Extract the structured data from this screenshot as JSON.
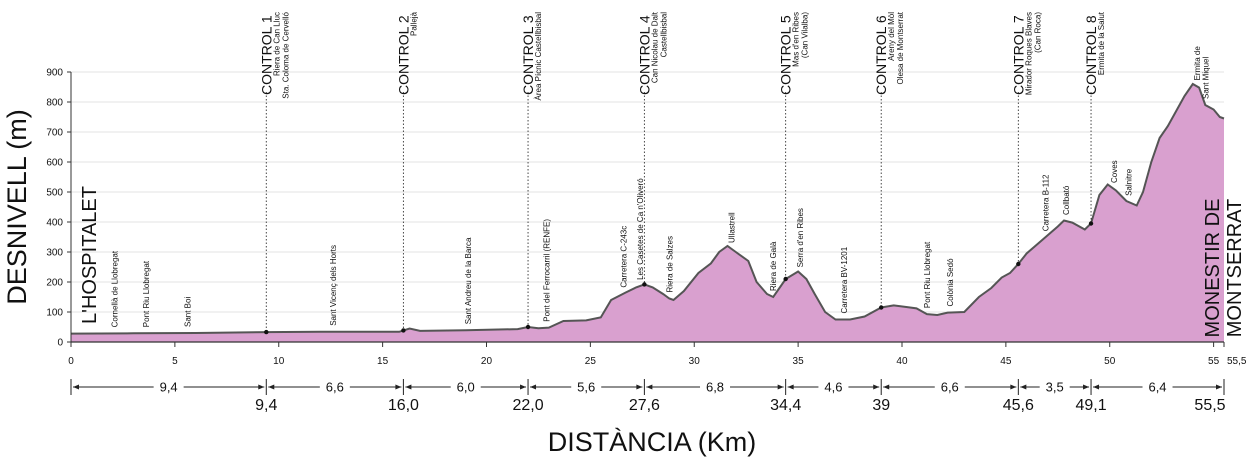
{
  "chart_data": {
    "type": "area",
    "xlabel": "DISTÀNCIA (Km)",
    "ylabel": "DESNIVELL (m)",
    "xlim": [
      0,
      55.5
    ],
    "ylim": [
      0,
      900
    ],
    "xticks": [
      "0",
      "5",
      "10",
      "15",
      "20",
      "25",
      "30",
      "35",
      "40",
      "45",
      "50",
      "55",
      "55,5"
    ],
    "yticks": [
      "0",
      "100",
      "200",
      "300",
      "400",
      "500",
      "600",
      "700",
      "800",
      "900"
    ],
    "grid": "horizontal",
    "colors": {
      "fill": "#d9a0cf",
      "line": "#555555",
      "axis": "#333333"
    },
    "start_label": "L'HOSPITALET",
    "end_label_1": "MONESTIR DE",
    "end_label_2": "MONTSERRAT",
    "profile": [
      [
        0,
        28
      ],
      [
        3,
        29
      ],
      [
        6,
        30
      ],
      [
        9.4,
        33
      ],
      [
        12,
        34
      ],
      [
        15.8,
        34
      ],
      [
        16.3,
        45
      ],
      [
        16.8,
        37
      ],
      [
        19,
        39
      ],
      [
        21.5,
        43
      ],
      [
        22,
        50
      ],
      [
        22.5,
        46
      ],
      [
        23,
        48
      ],
      [
        23.7,
        70
      ],
      [
        24.8,
        72
      ],
      [
        25.5,
        82
      ],
      [
        26,
        140
      ],
      [
        26.7,
        165
      ],
      [
        27.2,
        182
      ],
      [
        27.6,
        192
      ],
      [
        28,
        182
      ],
      [
        28.5,
        160
      ],
      [
        28.8,
        145
      ],
      [
        29,
        140
      ],
      [
        29.5,
        170
      ],
      [
        30.2,
        230
      ],
      [
        30.8,
        262
      ],
      [
        31.2,
        300
      ],
      [
        31.6,
        320
      ],
      [
        32,
        300
      ],
      [
        32.6,
        270
      ],
      [
        33,
        200
      ],
      [
        33.5,
        160
      ],
      [
        33.8,
        150
      ],
      [
        34.4,
        210
      ],
      [
        35,
        235
      ],
      [
        35.4,
        210
      ],
      [
        35.8,
        160
      ],
      [
        36.3,
        100
      ],
      [
        36.8,
        75
      ],
      [
        37.5,
        75
      ],
      [
        38.2,
        85
      ],
      [
        39,
        115
      ],
      [
        39.6,
        122
      ],
      [
        40.3,
        116
      ],
      [
        40.7,
        112
      ],
      [
        41.2,
        93
      ],
      [
        41.7,
        90
      ],
      [
        42.2,
        98
      ],
      [
        43,
        100
      ],
      [
        43.7,
        150
      ],
      [
        44.3,
        180
      ],
      [
        44.8,
        215
      ],
      [
        45.2,
        230
      ],
      [
        45.6,
        260
      ],
      [
        46,
        295
      ],
      [
        46.5,
        325
      ],
      [
        47,
        355
      ],
      [
        47.5,
        385
      ],
      [
        47.8,
        405
      ],
      [
        48.2,
        398
      ],
      [
        48.8,
        375
      ],
      [
        49.1,
        395
      ],
      [
        49.5,
        490
      ],
      [
        49.9,
        525
      ],
      [
        50.3,
        505
      ],
      [
        50.8,
        470
      ],
      [
        51.3,
        455
      ],
      [
        51.6,
        500
      ],
      [
        52,
        600
      ],
      [
        52.4,
        680
      ],
      [
        52.8,
        720
      ],
      [
        53.2,
        770
      ],
      [
        53.6,
        820
      ],
      [
        54,
        860
      ],
      [
        54.3,
        848
      ],
      [
        54.6,
        790
      ],
      [
        55,
        775
      ],
      [
        55.3,
        750
      ],
      [
        55.5,
        745
      ]
    ],
    "controls": [
      {
        "name": "CONTROL 1",
        "x": 9.4,
        "sub": [
          "Riera de Can Lluc",
          "Sta. Coloma de Cervelló"
        ]
      },
      {
        "name": "CONTROL 2",
        "x": 16.0,
        "sub": [
          "Pallejà"
        ]
      },
      {
        "name": "CONTROL 3",
        "x": 22.0,
        "sub": [
          "Àrea Pícnic Castellbisbal"
        ]
      },
      {
        "name": "CONTROL 4",
        "x": 27.6,
        "sub": [
          "Can Nicolau de Dalt",
          "Castellbisbal"
        ]
      },
      {
        "name": "CONTROL 5",
        "x": 34.4,
        "sub": [
          "Mas d'en Ribes",
          "(Can Vilalba)"
        ]
      },
      {
        "name": "CONTROL 6",
        "x": 39.0,
        "sub": [
          "Areny del Mòl",
          "Olesa de Montserrat"
        ]
      },
      {
        "name": "CONTROL 7",
        "x": 45.6,
        "sub": [
          "Mirador Roques Blaves",
          "(Can Roca)"
        ]
      },
      {
        "name": "CONTROL 8",
        "x": 49.1,
        "sub": [
          "Ermita de la Salut"
        ]
      }
    ],
    "places": [
      {
        "text": "Cornellà de Llobregat",
        "x": 2.1
      },
      {
        "text": "Pont Riu Llobregat",
        "x": 3.6
      },
      {
        "text": "Sant Boi",
        "x": 5.6
      },
      {
        "text": "Sant Vicenç dels Horts",
        "x": 12.6
      },
      {
        "text": "Sant Andreu de la Barca",
        "x": 19.1
      },
      {
        "text": "Pont del Ferrocarril (RENFE)",
        "x": 22.9
      },
      {
        "text": "Carretera C-243c",
        "x": 26.6
      },
      {
        "text": "Les Casetes de Ca n'Oliveró",
        "x": 27.4
      },
      {
        "text": "Riera de Salzes",
        "x": 28.8
      },
      {
        "text": "Ullastrell",
        "x": 31.8
      },
      {
        "text": "Riera de Galà",
        "x": 33.8
      },
      {
        "text": "Serra d'en Ribes",
        "x": 35.1
      },
      {
        "text": "Carretera BV-1201",
        "x": 37.2
      },
      {
        "text": "Pont Riu Llobregat",
        "x": 41.2
      },
      {
        "text": "Colònia Sedó",
        "x": 42.3
      },
      {
        "text": "Carretera B-112",
        "x": 46.9
      },
      {
        "text": "Collbató",
        "x": 47.9
      },
      {
        "text": "Coves",
        "x": 50.2
      },
      {
        "text": "Salnitre",
        "x": 50.9
      },
      {
        "text": "Ermita de",
        "x": 54.2
      },
      {
        "text": "Sant Miquel",
        "x": 54.6
      }
    ],
    "segments": [
      {
        "label": "9,4",
        "from": 0,
        "to": 9.4
      },
      {
        "label": "6,6",
        "from": 9.4,
        "to": 16.0
      },
      {
        "label": "6,0",
        "from": 16.0,
        "to": 22.0
      },
      {
        "label": "5,6",
        "from": 22.0,
        "to": 27.6
      },
      {
        "label": "6,8",
        "from": 27.6,
        "to": 34.4
      },
      {
        "label": "4,6",
        "from": 34.4,
        "to": 39.0
      },
      {
        "label": "6,6",
        "from": 39.0,
        "to": 45.6
      },
      {
        "label": "3,5",
        "from": 45.6,
        "to": 49.1
      },
      {
        "label": "6,4",
        "from": 49.1,
        "to": 55.5
      }
    ],
    "cumulative": [
      {
        "label": "9,4",
        "x": 9.4
      },
      {
        "label": "16,0",
        "x": 16.0
      },
      {
        "label": "22,0",
        "x": 22.0
      },
      {
        "label": "27,6",
        "x": 27.6
      },
      {
        "label": "34,4",
        "x": 34.4
      },
      {
        "label": "39",
        "x": 39.0
      },
      {
        "label": "45,6",
        "x": 45.6
      },
      {
        "label": "49,1",
        "x": 49.1
      },
      {
        "label": "55,5",
        "x": 55.5
      }
    ]
  }
}
